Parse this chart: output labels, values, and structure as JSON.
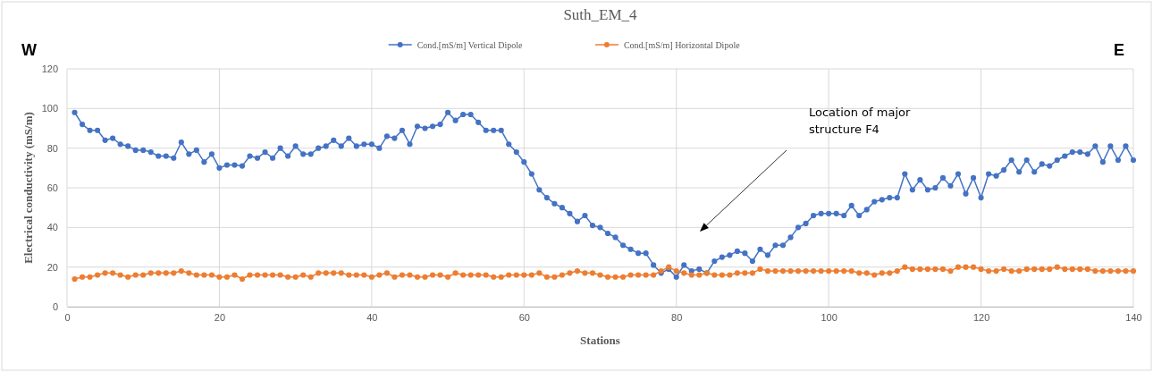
{
  "chart_data": {
    "type": "line",
    "title": "Suth_EM_4",
    "xlabel": "Stations",
    "ylabel": "Electrical conductivity (mS/m)",
    "x": [
      1,
      2,
      3,
      4,
      5,
      6,
      7,
      8,
      9,
      10,
      11,
      12,
      13,
      14,
      15,
      16,
      17,
      18,
      19,
      20,
      21,
      22,
      23,
      24,
      25,
      26,
      27,
      28,
      29,
      30,
      31,
      32,
      33,
      34,
      35,
      36,
      37,
      38,
      39,
      40,
      41,
      42,
      43,
      44,
      45,
      46,
      47,
      48,
      49,
      50,
      51,
      52,
      53,
      54,
      55,
      56,
      57,
      58,
      59,
      60,
      61,
      62,
      63,
      64,
      65,
      66,
      67,
      68,
      69,
      70,
      71,
      72,
      73,
      74,
      75,
      76,
      77,
      78,
      79,
      80,
      81,
      82,
      83,
      84,
      85,
      86,
      87,
      88,
      89,
      90,
      91,
      92,
      93,
      94,
      95,
      96,
      97,
      98,
      99,
      100,
      101,
      102,
      103,
      104,
      105,
      106,
      107,
      108,
      109,
      110,
      111,
      112,
      113,
      114,
      115,
      116,
      117,
      118,
      119,
      120,
      121,
      122,
      123,
      124,
      125,
      126,
      127,
      128,
      129,
      130,
      131,
      132,
      133,
      134,
      135,
      136,
      137,
      138,
      139,
      140
    ],
    "series": [
      {
        "name": "Cond.[mS/m] Vertical Dipole",
        "color": "#4472c4",
        "values": [
          98,
          92,
          89,
          89,
          84,
          85,
          82,
          81,
          79,
          79,
          78,
          76,
          76,
          75,
          83,
          77,
          79,
          73,
          77,
          70,
          71.5,
          71.5,
          71,
          76,
          75,
          78,
          75,
          80,
          76,
          81,
          77,
          77,
          80,
          81,
          84,
          81,
          85,
          81,
          82,
          82,
          80,
          86,
          85,
          89,
          82,
          91,
          90,
          91,
          92,
          98,
          94,
          97,
          97,
          93,
          89,
          89,
          89,
          82,
          78,
          73,
          67,
          59,
          55,
          52,
          50,
          47,
          43,
          46,
          41,
          40,
          37,
          35,
          31,
          29,
          27,
          27,
          21,
          17,
          19,
          15,
          21,
          18,
          19,
          17,
          23,
          25,
          26,
          28,
          27,
          23,
          29,
          26,
          31,
          31,
          35,
          40,
          42,
          46,
          47,
          47,
          47,
          46,
          51,
          46,
          49,
          53,
          54,
          55,
          55,
          67,
          59,
          64,
          59,
          60,
          65,
          61,
          67,
          57,
          65,
          55,
          67,
          66,
          69,
          74,
          68,
          74,
          68,
          72,
          71,
          74,
          76,
          78,
          78,
          77,
          81,
          73,
          81,
          74,
          81,
          74
        ]
      },
      {
        "name": "Cond.[mS/m] Horizontal Dipole",
        "color": "#ed7d31",
        "values": [
          14,
          15,
          15,
          16,
          17,
          17,
          16,
          15,
          16,
          16,
          17,
          17,
          17,
          17,
          18,
          17,
          16,
          16,
          16,
          15,
          15,
          16,
          14,
          16,
          16,
          16,
          16,
          16,
          15,
          15,
          16,
          15,
          17,
          17,
          17,
          17,
          16,
          16,
          16,
          15,
          16,
          17,
          15,
          16,
          16,
          15,
          15,
          16,
          16,
          15,
          17,
          16,
          16,
          16,
          16,
          15,
          15,
          16,
          16,
          16,
          16,
          17,
          15,
          15,
          16,
          17,
          18,
          17,
          17,
          16,
          15,
          15,
          15,
          16,
          16,
          16,
          16,
          18,
          20,
          18,
          17,
          16,
          16,
          17,
          16,
          16,
          16,
          17,
          17,
          17,
          19,
          18,
          18,
          18,
          18,
          18,
          18,
          18,
          18,
          18,
          18,
          18,
          18,
          17,
          17,
          16,
          17,
          17,
          18,
          20,
          19,
          19,
          19,
          19,
          19,
          18,
          20,
          20,
          20,
          19,
          18,
          18,
          19,
          18,
          18,
          19,
          19,
          19,
          19,
          20,
          19,
          19,
          19,
          19,
          18,
          18,
          18,
          18,
          18,
          18
        ]
      }
    ],
    "xlim": [
      0,
      140
    ],
    "xticks": [
      0,
      20,
      40,
      60,
      80,
      100,
      120,
      140
    ],
    "ylim": [
      0,
      120
    ],
    "yticks": [
      0,
      20,
      40,
      60,
      80,
      100,
      120
    ],
    "grid": true,
    "legend": "top",
    "marker": "circle",
    "line_style": "solid",
    "annotations": [
      "W",
      "E",
      "Location of major structure F4"
    ]
  }
}
